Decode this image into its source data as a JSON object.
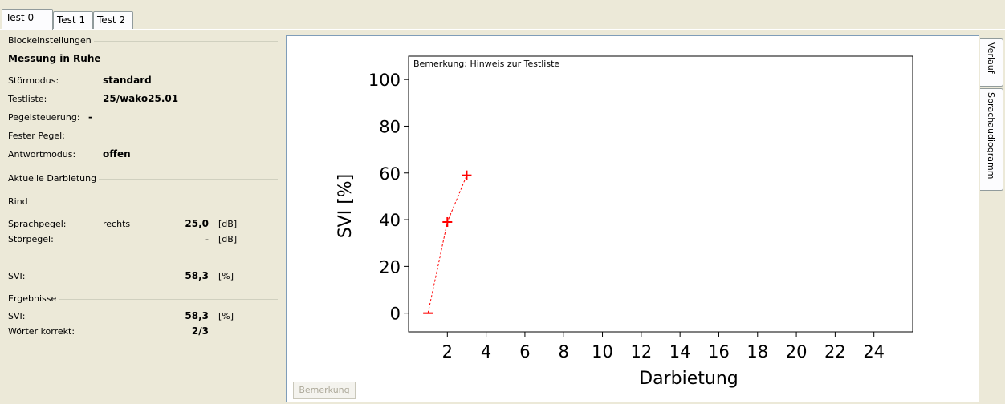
{
  "tabs": [
    {
      "label": "Test 0",
      "active": true
    },
    {
      "label": "Test 1",
      "active": false
    },
    {
      "label": "Test 2",
      "active": false
    }
  ],
  "block_settings": {
    "title": "Blockeinstellungen",
    "heading": "Messung in Ruhe",
    "rows": [
      {
        "label": "Störmodus:",
        "value": "standard"
      },
      {
        "label": "Testliste:",
        "value": "25/wako25.01"
      },
      {
        "label": "Pegelsteuerung:",
        "value": "-"
      },
      {
        "label": "Fester Pegel:",
        "value": ""
      },
      {
        "label": "Antwortmodus:",
        "value": "offen"
      }
    ]
  },
  "current": {
    "title": "Aktuelle Darbietung",
    "word": "Rind",
    "speech_level": {
      "label": "Sprachpegel:",
      "side": "rechts",
      "value": "25,0",
      "unit": "[dB]"
    },
    "noise_level": {
      "label": "Störpegel:",
      "value": "-",
      "unit": "[dB]"
    },
    "svi": {
      "label": "SVI:",
      "value": "58,3",
      "unit": "[%]"
    }
  },
  "results": {
    "title": "Ergebnisse",
    "svi": {
      "label": "SVI:",
      "value": "58,3",
      "unit": "[%]"
    },
    "words_correct": {
      "label": "Wörter korrekt:",
      "value": "2/3"
    }
  },
  "remark_button": "Bemerkung",
  "side_tabs": [
    {
      "label": "Verlauf",
      "active": true
    },
    {
      "label": "Sprachaudiogramm",
      "active": false
    }
  ],
  "chart_data": {
    "type": "line",
    "annotation": "Bemerkung: Hinweis zur Testliste",
    "xlabel": "Darbietung",
    "ylabel": "SVI [%]",
    "xlim": [
      0,
      26
    ],
    "ylim": [
      -8,
      110
    ],
    "xticks": [
      2,
      4,
      6,
      8,
      10,
      12,
      14,
      16,
      18,
      20,
      22,
      24
    ],
    "yticks": [
      0,
      20,
      40,
      60,
      80,
      100
    ],
    "series": [
      {
        "x": [
          1,
          2,
          3
        ],
        "y": [
          0,
          39,
          59
        ],
        "color": "#ff0000",
        "markers": [
          "minus",
          "plus",
          "plus"
        ],
        "line_style": "dashed"
      }
    ]
  }
}
